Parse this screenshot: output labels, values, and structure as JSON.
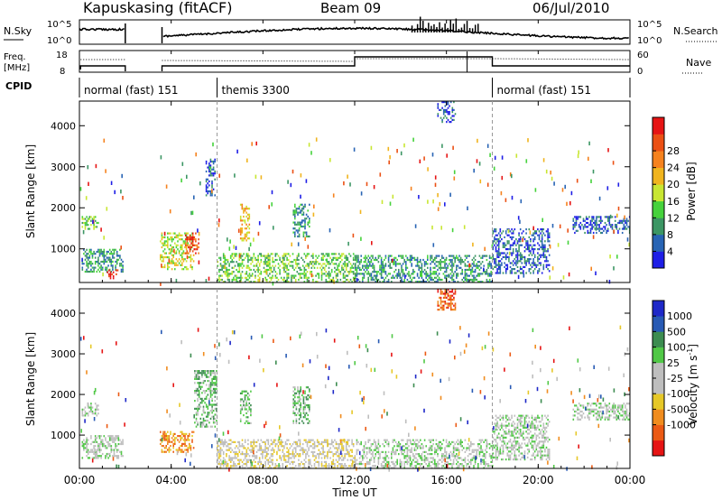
{
  "header": {
    "station": "Kapuskasing (fitACF)",
    "beam": "Beam 09",
    "date": "06/Jul/2010"
  },
  "top_panels": {
    "nsky_label": "N.Sky",
    "nsky_ticks": [
      "10^5",
      "10^0"
    ],
    "nsearch_label": "N.Search",
    "nsearch_ticks": [
      "10^5",
      "10^0"
    ],
    "freq_label_1": "Freq.",
    "freq_label_2": "[MHz]",
    "freq_ticks": [
      "18",
      "8"
    ],
    "nave_label": "Nave",
    "nave_ticks": [
      "60",
      "0"
    ],
    "cpid_label": "CPID",
    "cpid_segments": [
      {
        "label": "normal (fast) 151",
        "start_ut": 0.0,
        "end_ut": 6.0
      },
      {
        "label": "themis 3300",
        "start_ut": 6.0,
        "end_ut": 18.0
      },
      {
        "label": "normal (fast) 151",
        "start_ut": 18.0,
        "end_ut": 24.0
      }
    ]
  },
  "axes": {
    "ylabel": "Slant Range [km]",
    "xlabel": "Time UT",
    "xticks": [
      "00:00",
      "04:00",
      "08:00",
      "12:00",
      "16:00",
      "20:00",
      "00:00"
    ],
    "yticks": [
      "1000",
      "2000",
      "3000",
      "4000"
    ]
  },
  "power_scale": {
    "label": "Power [dB]",
    "ticks": [
      "4",
      "8",
      "12",
      "16",
      "20",
      "24",
      "28"
    ],
    "colors": [
      "#1e1ee6",
      "#2864b4",
      "#3c9664",
      "#46d23c",
      "#c8e632",
      "#f0b41e",
      "#f5821e",
      "#eb5014",
      "#e61414"
    ]
  },
  "velocity_scale": {
    "label": "Velocity [m s",
    "label_sup": "-1",
    "label_end": "]",
    "ticks": [
      "1000",
      "500",
      "100",
      "25",
      "-25",
      "-100",
      "-500",
      "-1000"
    ],
    "colors": [
      "#1e28c8",
      "#285ab4",
      "#3c8c50",
      "#50c846",
      "#bebebe",
      "#bebebe",
      "#e6c828",
      "#f08c1e",
      "#eb5a14",
      "#e61414"
    ]
  },
  "chart_data": {
    "type": "heatmap",
    "x_unit": "hours UT",
    "xlim": [
      0,
      24
    ],
    "ylim": [
      180,
      4600
    ],
    "ground_scatter_color": "#bebebe",
    "power_regions": [
      {
        "t0": 0.1,
        "t1": 0.8,
        "r0": 1500,
        "r1": 1800,
        "level": 3
      },
      {
        "t0": 0.1,
        "t1": 1.9,
        "r0": 450,
        "r1": 1000,
        "level": 2
      },
      {
        "t0": 1.2,
        "t1": 1.7,
        "r0": 300,
        "r1": 500,
        "level": 8
      },
      {
        "t0": 3.5,
        "t1": 5.0,
        "r0": 500,
        "r1": 1400,
        "level": 4
      },
      {
        "t0": 4.6,
        "t1": 5.2,
        "r0": 900,
        "r1": 1400,
        "level": 7
      },
      {
        "t0": 5.5,
        "t1": 5.9,
        "r0": 2300,
        "r1": 3200,
        "level": 1
      },
      {
        "t0": 6.0,
        "t1": 12.0,
        "r0": 200,
        "r1": 900,
        "level": 3
      },
      {
        "t0": 7.0,
        "t1": 7.4,
        "r0": 1200,
        "r1": 2100,
        "level": 5
      },
      {
        "t0": 9.3,
        "t1": 10.0,
        "r0": 1300,
        "r1": 2100,
        "level": 2
      },
      {
        "t0": 12.0,
        "t1": 18.0,
        "r0": 200,
        "r1": 850,
        "level": 2
      },
      {
        "t0": 15.6,
        "t1": 16.4,
        "r0": 4100,
        "r1": 4600,
        "level": 1
      },
      {
        "t0": 18.0,
        "t1": 20.5,
        "r0": 400,
        "r1": 1500,
        "level": 1
      },
      {
        "t0": 21.5,
        "t1": 24.0,
        "r0": 1400,
        "r1": 1800,
        "level": 1
      }
    ],
    "velocity_regions": [
      {
        "t0": 0.1,
        "t1": 0.8,
        "r0": 1500,
        "r1": 1800,
        "level": 4
      },
      {
        "t0": 0.1,
        "t1": 1.9,
        "r0": 450,
        "r1": 1000,
        "level": 4
      },
      {
        "t0": 3.5,
        "t1": 5.0,
        "r0": 600,
        "r1": 1100,
        "level": 7
      },
      {
        "t0": 5.0,
        "t1": 6.0,
        "r0": 1200,
        "r1": 2600,
        "level": 3
      },
      {
        "t0": 6.0,
        "t1": 12.0,
        "r0": 200,
        "r1": 900,
        "level": 5
      },
      {
        "t0": 7.0,
        "t1": 7.5,
        "r0": 1300,
        "r1": 2100,
        "level": 3
      },
      {
        "t0": 9.3,
        "t1": 10.0,
        "r0": 1300,
        "r1": 2200,
        "level": 3
      },
      {
        "t0": 12.0,
        "t1": 18.0,
        "r0": 200,
        "r1": 900,
        "level": 4
      },
      {
        "t0": 15.6,
        "t1": 16.4,
        "r0": 4100,
        "r1": 4600,
        "level": 8
      },
      {
        "t0": 18.0,
        "t1": 20.5,
        "r0": 400,
        "r1": 1500,
        "level": 4
      },
      {
        "t0": 21.5,
        "t1": 24.0,
        "r0": 1400,
        "r1": 1800,
        "level": 4
      }
    ]
  }
}
